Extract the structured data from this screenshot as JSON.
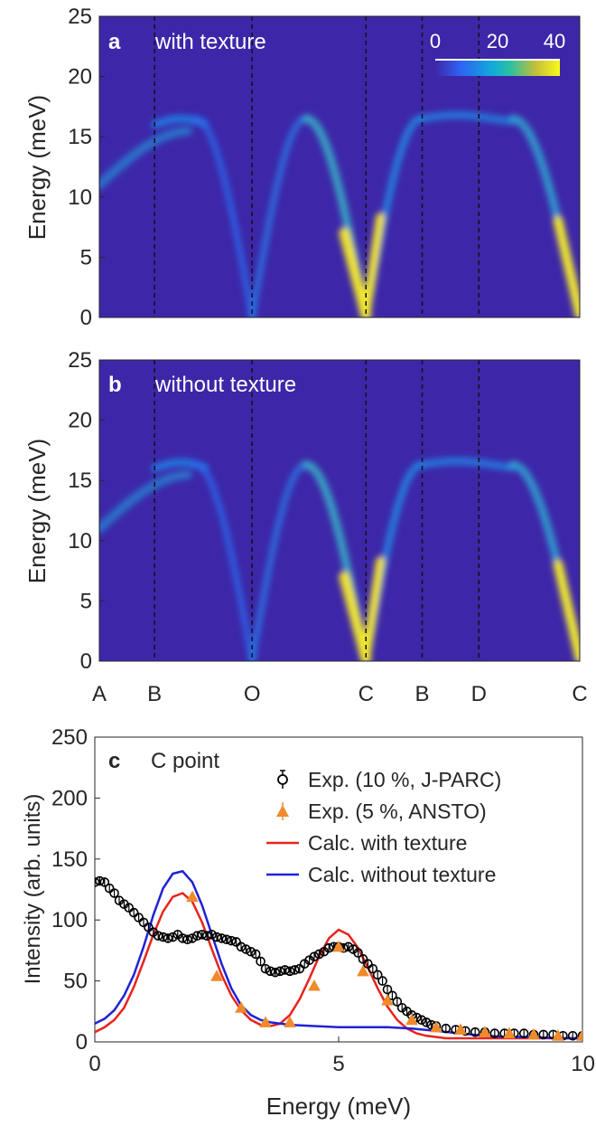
{
  "colors": {
    "map_bg": "#3d27a8",
    "calc_with": "#e8231d",
    "calc_without": "#1f22d6",
    "exp_jparc": "#000000",
    "exp_ansto": "#f08a2a",
    "axis": "#262626"
  },
  "panels": {
    "a": {
      "letter": "a",
      "label": "with texture"
    },
    "b": {
      "letter": "b",
      "label": "without texture"
    }
  },
  "colorbar": {
    "ticks": [
      "0",
      "20",
      "40"
    ]
  },
  "q_points": [
    "A",
    "B",
    "O",
    "C",
    "B",
    "D",
    "C"
  ],
  "chart_data": [
    {
      "type": "heatmap",
      "panel": "a",
      "ylabel": "Energy (meV)",
      "ylim": [
        0,
        25
      ],
      "yticks": [
        "0",
        "5",
        "10",
        "15",
        "20",
        "25"
      ],
      "clim": [
        0,
        40
      ],
      "q_path": [
        "A",
        "B",
        "O",
        "C",
        "B",
        "D",
        "C"
      ],
      "q_fraction": [
        0,
        0.115,
        0.318,
        0.555,
        0.672,
        0.79,
        1.0
      ],
      "dispersion_max_meV": 16.5
    },
    {
      "type": "heatmap",
      "panel": "b",
      "ylabel": "Energy (meV)",
      "ylim": [
        0,
        25
      ],
      "yticks": [
        "0",
        "5",
        "10",
        "15",
        "20",
        "25"
      ],
      "clim": [
        0,
        40
      ],
      "q_path": [
        "A",
        "B",
        "O",
        "C",
        "B",
        "D",
        "C"
      ],
      "q_fraction": [
        0,
        0.115,
        0.318,
        0.555,
        0.672,
        0.79,
        1.0
      ],
      "dispersion_max_meV": 16.3
    },
    {
      "type": "line",
      "panel": "c",
      "letter": "c",
      "title": "C point",
      "xlabel": "Energy (meV)",
      "ylabel": "Intensity (arb. units)",
      "xlim": [
        0,
        10
      ],
      "ylim": [
        0,
        250
      ],
      "xticks": [
        "0",
        "5",
        "10"
      ],
      "yticks": [
        "0",
        "50",
        "100",
        "150",
        "200",
        "250"
      ],
      "legend_position": "top-right",
      "series": [
        {
          "name": "Exp. (10 %, J-PARC)",
          "kind": "scatter",
          "marker": "circle",
          "x": [
            0.0,
            0.1,
            0.2,
            0.3,
            0.4,
            0.5,
            0.6,
            0.7,
            0.8,
            0.9,
            1.0,
            1.1,
            1.2,
            1.3,
            1.4,
            1.5,
            1.6,
            1.7,
            1.8,
            1.9,
            2.0,
            2.1,
            2.2,
            2.3,
            2.4,
            2.5,
            2.6,
            2.7,
            2.8,
            2.9,
            3.0,
            3.1,
            3.2,
            3.3,
            3.4,
            3.5,
            3.6,
            3.7,
            3.8,
            3.9,
            4.0,
            4.1,
            4.2,
            4.3,
            4.4,
            4.5,
            4.6,
            4.7,
            4.8,
            4.9,
            5.0,
            5.1,
            5.2,
            5.3,
            5.4,
            5.5,
            5.6,
            5.7,
            5.8,
            5.9,
            6.0,
            6.1,
            6.2,
            6.3,
            6.4,
            6.5,
            6.6,
            6.7,
            6.8,
            6.9,
            7.0,
            7.2,
            7.4,
            7.6,
            7.8,
            8.0,
            8.2,
            8.4,
            8.6,
            8.8,
            9.0,
            9.2,
            9.4,
            9.6,
            9.8,
            10.0
          ],
          "y": [
            131,
            132,
            131,
            126,
            122,
            116,
            113,
            110,
            106,
            102,
            98,
            94,
            90,
            87,
            86,
            85,
            86,
            88,
            85,
            84,
            85,
            87,
            88,
            87,
            88,
            86,
            85,
            84,
            83,
            82,
            78,
            76,
            74,
            72,
            66,
            60,
            58,
            57,
            58,
            59,
            58,
            59,
            60,
            64,
            67,
            70,
            72,
            74,
            77,
            78,
            78,
            77,
            78,
            76,
            73,
            68,
            64,
            60,
            55,
            50,
            43,
            38,
            33,
            28,
            25,
            22,
            20,
            18,
            16,
            14,
            13,
            11,
            10,
            9,
            8,
            8,
            7,
            7,
            7,
            7,
            6,
            6,
            6,
            5,
            5,
            5
          ]
        },
        {
          "name": "Exp. (5 %, ANSTO)",
          "kind": "scatter",
          "marker": "triangle",
          "x": [
            2.0,
            2.5,
            3.0,
            3.5,
            4.0,
            4.5,
            5.0,
            5.5,
            6.0,
            6.5,
            7.0,
            7.5,
            8.0,
            8.5,
            9.0,
            9.5,
            10.0
          ],
          "y": [
            119,
            54,
            28,
            16,
            16,
            46,
            78,
            58,
            34,
            18,
            12,
            10,
            8,
            7,
            6,
            5,
            5
          ]
        },
        {
          "name": "Calc. with texture",
          "kind": "line",
          "x": [
            0.0,
            0.2,
            0.4,
            0.6,
            0.8,
            1.0,
            1.2,
            1.4,
            1.6,
            1.8,
            2.0,
            2.2,
            2.4,
            2.6,
            2.8,
            3.0,
            3.2,
            3.4,
            3.6,
            3.8,
            4.0,
            4.2,
            4.4,
            4.6,
            4.8,
            5.0,
            5.2,
            5.4,
            5.6,
            5.8,
            6.0,
            6.2,
            6.4,
            6.6,
            6.8,
            7.0,
            7.2,
            7.4,
            7.6,
            7.8,
            8.0,
            8.5,
            9.0,
            9.5,
            10.0
          ],
          "y": [
            8,
            12,
            18,
            28,
            45,
            66,
            88,
            107,
            119,
            122,
            115,
            98,
            76,
            55,
            38,
            26,
            18,
            14,
            13,
            15,
            22,
            35,
            52,
            70,
            85,
            92,
            88,
            77,
            61,
            44,
            29,
            18,
            11,
            7,
            5,
            4,
            3,
            3,
            3,
            3,
            3,
            3,
            3,
            3,
            3
          ]
        },
        {
          "name": "Calc. without texture",
          "kind": "line",
          "x": [
            0.0,
            0.2,
            0.4,
            0.6,
            0.8,
            1.0,
            1.2,
            1.4,
            1.6,
            1.8,
            2.0,
            2.2,
            2.4,
            2.6,
            2.8,
            3.0,
            3.2,
            3.4,
            3.6,
            3.8,
            4.0,
            4.5,
            5.0,
            5.5,
            6.0,
            6.5,
            7.0,
            7.5,
            8.0,
            8.5,
            9.0,
            9.5,
            10.0
          ],
          "y": [
            15,
            19,
            26,
            38,
            55,
            78,
            104,
            126,
            138,
            140,
            131,
            112,
            88,
            64,
            44,
            30,
            22,
            18,
            16,
            15,
            14,
            13,
            12,
            12,
            12,
            11,
            9,
            7,
            5,
            4,
            4,
            3,
            3
          ]
        }
      ]
    }
  ]
}
